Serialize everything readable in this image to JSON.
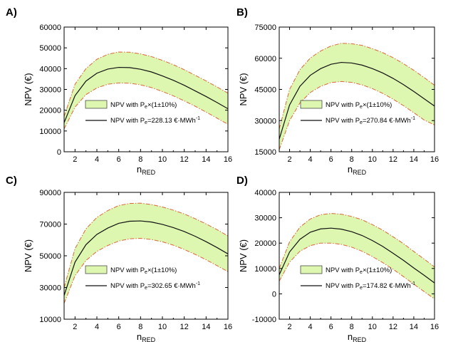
{
  "figure": {
    "background": "#ffffff"
  },
  "style": {
    "band_fill": "#ddf7b0",
    "band_edge": "#d96a3a",
    "main_line": "#111111",
    "axis": "#000000"
  },
  "chart_data": [
    {
      "id": "A",
      "label": "A)",
      "type": "area",
      "xlabel": "n",
      "xlabel_sub": "RED",
      "ylabel": "NPV (€)",
      "xlim": [
        1,
        16
      ],
      "ylim": [
        0,
        60000
      ],
      "xticks": [
        2,
        4,
        6,
        8,
        10,
        12,
        14,
        16
      ],
      "xtick_labels": [
        "2",
        "4",
        "6",
        "8",
        "10",
        "12",
        "14",
        "16"
      ],
      "yticks": [
        0,
        10000,
        20000,
        30000,
        40000,
        50000,
        60000
      ],
      "ytick_labels": [
        "0",
        "10000",
        "20000",
        "30000",
        "40000",
        "50000",
        "60000"
      ],
      "legend": {
        "band": {
          "prefix": "NPV with P",
          "sub": "e",
          "suffix": "×(1±10%)"
        },
        "line": {
          "prefix": "NPV with P",
          "sub": "e",
          "suffix": "=228.13 €·MWh",
          "sup": "-1"
        }
      },
      "x": [
        1,
        2,
        3,
        4,
        5,
        6,
        7,
        8,
        9,
        10,
        11,
        12,
        13,
        14,
        15,
        16
      ],
      "npv": [
        14000,
        27000,
        34000,
        37800,
        39800,
        40600,
        40500,
        39700,
        38400,
        36500,
        34400,
        32000,
        29300,
        26600,
        23700,
        20700
      ],
      "lower": [
        11000,
        21500,
        27500,
        30700,
        32500,
        33100,
        33000,
        32200,
        30900,
        29000,
        26900,
        24500,
        21900,
        19100,
        16200,
        13200
      ],
      "upper": [
        17000,
        32500,
        40000,
        44500,
        46900,
        48000,
        47900,
        47100,
        45800,
        44000,
        41900,
        39500,
        36800,
        34100,
        31200,
        28200
      ]
    },
    {
      "id": "B",
      "label": "B)",
      "type": "area",
      "xlabel": "n",
      "xlabel_sub": "RED",
      "ylabel": "NPV (€)",
      "xlim": [
        1,
        16
      ],
      "ylim": [
        15000,
        75000
      ],
      "xticks": [
        2,
        4,
        6,
        8,
        10,
        12,
        14,
        16
      ],
      "xtick_labels": [
        "2",
        "4",
        "6",
        "8",
        "10",
        "12",
        "14",
        "16"
      ],
      "yticks": [
        15000,
        30000,
        45000,
        60000,
        75000
      ],
      "ytick_labels": [
        "15000",
        "30000",
        "45000",
        "60000",
        "75000"
      ],
      "legend": {
        "band": {
          "prefix": "NPV with P",
          "sub": "e",
          "suffix": "×(1±10%)"
        },
        "line": {
          "prefix": "NPV with P",
          "sub": "e",
          "suffix": "=270.84 €·MWh",
          "sup": "-1"
        }
      },
      "x": [
        1,
        2,
        3,
        4,
        5,
        6,
        7,
        8,
        9,
        10,
        11,
        12,
        13,
        14,
        15,
        16
      ],
      "npv": [
        21000,
        37500,
        46500,
        51800,
        55000,
        57100,
        58000,
        57700,
        56700,
        55000,
        52900,
        50300,
        47300,
        44000,
        40500,
        37000
      ],
      "lower": [
        16000,
        30000,
        38500,
        43500,
        46500,
        48300,
        48800,
        48400,
        47200,
        45400,
        43100,
        40300,
        37200,
        33800,
        30300,
        27900
      ],
      "upper": [
        26000,
        45000,
        54500,
        60100,
        63500,
        65900,
        67200,
        67000,
        66200,
        64600,
        62700,
        60300,
        57400,
        54200,
        50700,
        47000
      ]
    },
    {
      "id": "C",
      "label": "C)",
      "type": "area",
      "xlabel": "n",
      "xlabel_sub": "RED",
      "ylabel": "NPV (€)",
      "xlim": [
        1,
        16
      ],
      "ylim": [
        10000,
        90000
      ],
      "xticks": [
        2,
        4,
        6,
        8,
        10,
        12,
        14,
        16
      ],
      "xtick_labels": [
        "2",
        "4",
        "6",
        "8",
        "10",
        "12",
        "14",
        "16"
      ],
      "yticks": [
        10000,
        30000,
        50000,
        70000,
        90000
      ],
      "ytick_labels": [
        "10000",
        "30000",
        "50000",
        "70000",
        "90000"
      ],
      "legend": {
        "band": {
          "prefix": "NPV with P",
          "sub": "e",
          "suffix": "×(1±10%)"
        },
        "line": {
          "prefix": "NPV with P",
          "sub": "e",
          "suffix": "=302.65 €·MWh",
          "sup": "-1"
        }
      },
      "x": [
        1,
        2,
        3,
        4,
        5,
        6,
        7,
        8,
        9,
        10,
        11,
        12,
        13,
        14,
        15,
        16
      ],
      "npv": [
        25000,
        46000,
        57000,
        63500,
        67500,
        70500,
        71800,
        72000,
        71300,
        69800,
        67800,
        65300,
        62300,
        58900,
        55200,
        51200
      ],
      "lower": [
        20000,
        37500,
        47000,
        52800,
        56500,
        59300,
        60700,
        61000,
        60300,
        58800,
        56700,
        54000,
        50900,
        47500,
        43800,
        40000
      ],
      "upper": [
        30000,
        54500,
        67000,
        74200,
        78500,
        81700,
        83000,
        83200,
        82300,
        80800,
        78800,
        76400,
        73400,
        70100,
        66500,
        62500
      ]
    },
    {
      "id": "D",
      "label": "D)",
      "type": "area",
      "xlabel": "n",
      "xlabel_sub": "RED",
      "ylabel": "NPV (€)",
      "xlim": [
        1,
        16
      ],
      "ylim": [
        -10000,
        40000
      ],
      "xticks": [
        2,
        4,
        6,
        8,
        10,
        12,
        14,
        16
      ],
      "xtick_labels": [
        "2",
        "4",
        "6",
        "8",
        "10",
        "12",
        "14",
        "16"
      ],
      "yticks": [
        -10000,
        0,
        10000,
        20000,
        30000,
        40000
      ],
      "ytick_labels": [
        "-10000",
        "0",
        "10000",
        "20000",
        "30000",
        "40000"
      ],
      "legend": {
        "band": {
          "prefix": "NPV with P",
          "sub": "e",
          "suffix": "×(1±10%)"
        },
        "line": {
          "prefix": "NPV with P",
          "sub": "e",
          "suffix": "=174.82 €·MWh",
          "sup": "-1"
        }
      },
      "x": [
        1,
        2,
        3,
        4,
        5,
        6,
        7,
        8,
        9,
        10,
        11,
        12,
        13,
        14,
        15,
        16
      ],
      "npv": [
        7500,
        16500,
        21500,
        24300,
        25600,
        25900,
        25500,
        24500,
        23000,
        21000,
        18700,
        16000,
        13200,
        10200,
        7300,
        4300
      ],
      "lower": [
        5000,
        12500,
        16800,
        19000,
        20000,
        20000,
        19500,
        18400,
        16800,
        14700,
        12300,
        9700,
        6800,
        3800,
        900,
        -2000
      ],
      "upper": [
        10000,
        20500,
        26300,
        29500,
        31200,
        31700,
        31400,
        30500,
        29200,
        27300,
        25100,
        22500,
        19800,
        16700,
        13700,
        10600
      ]
    }
  ]
}
